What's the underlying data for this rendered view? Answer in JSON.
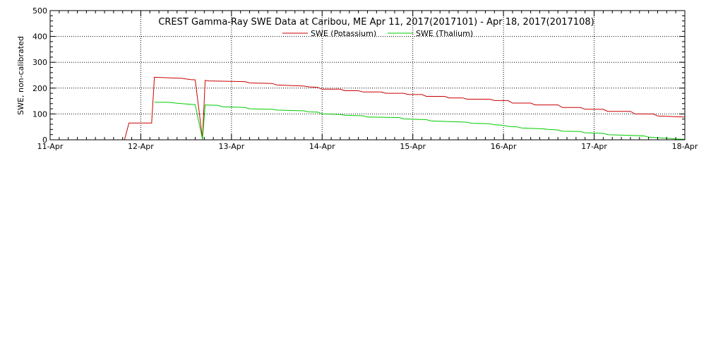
{
  "chart_data": {
    "type": "line",
    "title": "CREST Gamma-Ray SWE Data at Caribou, ME   Apr 11, 2017(2017101) - Apr 18, 2017(2017108)",
    "xlabel": "",
    "ylabel": "SWE, non-calibrated",
    "xlim": [
      0,
      7
    ],
    "ylim": [
      0,
      500
    ],
    "x_ticks": [
      0,
      1,
      2,
      3,
      4,
      5,
      6,
      7
    ],
    "x_tick_labels": [
      "11-Apr",
      "12-Apr",
      "13-Apr",
      "14-Apr",
      "15-Apr",
      "16-Apr",
      "17-Apr",
      "18-Apr"
    ],
    "y_ticks": [
      0,
      100,
      200,
      300,
      400,
      500
    ],
    "y_tick_labels": [
      "0",
      "100",
      "200",
      "300",
      "400",
      "500"
    ],
    "grid": true,
    "legend_position": "top-center",
    "series": [
      {
        "name": "SWE (Potassium)",
        "color": "#cc0000",
        "x": [
          0.82,
          0.87,
          1.12,
          1.15,
          1.45,
          1.55,
          1.6,
          1.68,
          1.71,
          1.75,
          2.15,
          2.2,
          2.45,
          2.5,
          2.8,
          2.85,
          2.95,
          3.0,
          3.2,
          3.25,
          3.4,
          3.45,
          3.65,
          3.7,
          3.9,
          3.95,
          4.1,
          4.15,
          4.35,
          4.4,
          4.55,
          4.6,
          4.85,
          4.9,
          5.05,
          5.1,
          5.3,
          5.35,
          5.6,
          5.65,
          5.85,
          5.9,
          6.1,
          6.15,
          6.4,
          6.45,
          6.65,
          6.7,
          7.0
        ],
        "y": [
          0,
          65,
          65,
          242,
          238,
          233,
          232,
          5,
          230,
          228,
          225,
          220,
          218,
          212,
          208,
          205,
          203,
          196,
          196,
          190,
          190,
          185,
          185,
          180,
          180,
          175,
          175,
          168,
          168,
          162,
          162,
          157,
          157,
          152,
          152,
          142,
          142,
          135,
          135,
          125,
          125,
          118,
          118,
          110,
          110,
          100,
          100,
          92,
          88
        ]
      },
      {
        "name": "SWE (Thalium)",
        "color": "#00cc00",
        "x": [
          1.15,
          1.3,
          1.45,
          1.6,
          1.68,
          1.71,
          1.85,
          1.9,
          2.15,
          2.2,
          2.45,
          2.5,
          2.8,
          2.85,
          2.95,
          3.0,
          3.2,
          3.25,
          3.45,
          3.5,
          3.85,
          3.9,
          4.15,
          4.2,
          4.6,
          4.65,
          4.85,
          4.9,
          5.0,
          5.05,
          5.15,
          5.2,
          5.45,
          5.5,
          5.6,
          5.65,
          5.85,
          5.9,
          6.1,
          6.15,
          6.55,
          6.6,
          6.85,
          6.9,
          7.0
        ],
        "y": [
          145,
          145,
          140,
          136,
          2,
          135,
          133,
          128,
          125,
          120,
          118,
          115,
          112,
          108,
          107,
          100,
          98,
          95,
          93,
          88,
          86,
          81,
          78,
          73,
          68,
          64,
          62,
          58,
          56,
          52,
          50,
          46,
          42,
          40,
          38,
          33,
          32,
          27,
          25,
          20,
          15,
          10,
          5,
          3,
          2
        ]
      }
    ]
  }
}
